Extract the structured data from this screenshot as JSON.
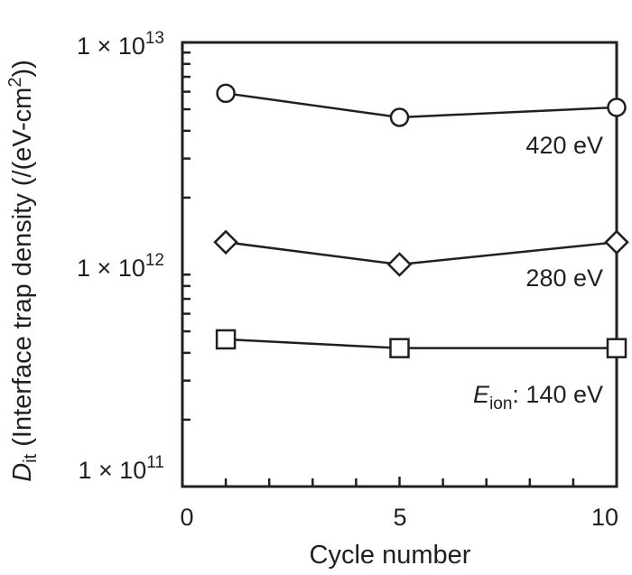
{
  "chart_data": {
    "type": "line",
    "title": "",
    "xlabel": "Cycle number",
    "ylabel": "D_it (Interface trap density (/(eV-cm^2))",
    "ylabel_parts": {
      "symbol": "D",
      "subscript": "it",
      "rest": " (Interface trap density (/(eV-cm",
      "sup": "2",
      "tail": "))"
    },
    "xscale": "linear",
    "yscale": "log",
    "xlim": [
      0,
      10
    ],
    "ylim": [
      100000000000.0,
      10000000000000.0
    ],
    "x_ticks": [
      0,
      5,
      10
    ],
    "x_tick_labels": [
      "0",
      "5",
      "10"
    ],
    "y_ticks": [
      100000000000.0,
      1000000000000.0,
      10000000000000.0
    ],
    "y_tick_labels": [
      {
        "base": "1 × 10",
        "exp": "11"
      },
      {
        "base": "1 × 10",
        "exp": "12"
      },
      {
        "base": "1 × 10",
        "exp": "13"
      }
    ],
    "grid": false,
    "legend": "inline annotations",
    "x": [
      1,
      5,
      10
    ],
    "series": [
      {
        "name": "420 eV",
        "marker": "circle",
        "values": [
          5900000000000.0,
          4600000000000.0,
          5100000000000.0
        ]
      },
      {
        "name": "280 eV",
        "marker": "diamond",
        "values": [
          1260000000000.0,
          1000000000000.0,
          1260000000000.0
        ]
      },
      {
        "name": "140 eV",
        "marker": "square",
        "values": [
          460000000000.0,
          420000000000.0,
          420000000000.0
        ]
      }
    ],
    "annotations": [
      {
        "text": "420 eV"
      },
      {
        "text": "280 eV"
      },
      {
        "prefix_symbol": "E",
        "prefix_subscript": "ion",
        "text": ": 140 eV"
      }
    ]
  },
  "colors": {
    "ink": "#231f20",
    "background": "#ffffff"
  }
}
